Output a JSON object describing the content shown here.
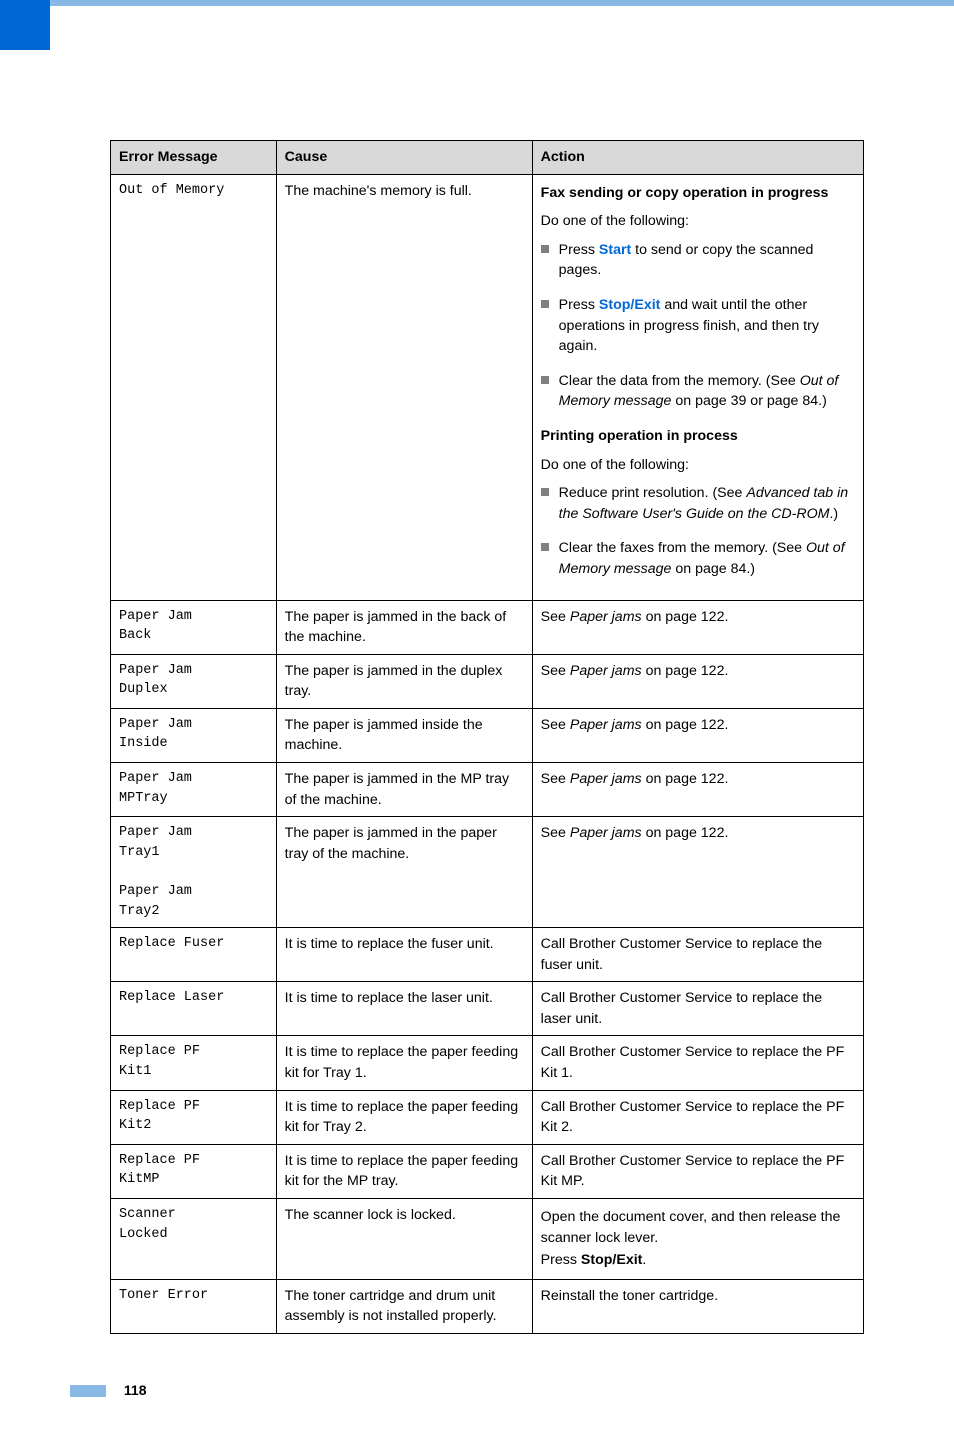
{
  "header": {
    "cols": [
      "Error Message",
      "Cause",
      "Action"
    ]
  },
  "rows": [
    {
      "msg": "Out of Memory",
      "cause": "The machine's memory is full.",
      "action_html": "out_of_memory"
    },
    {
      "msg": "Paper Jam\nBack",
      "cause": "The paper is jammed in the back of the machine.",
      "action": {
        "pre": "See ",
        "ital": "Paper jams",
        "post": " on page 122."
      }
    },
    {
      "msg": "Paper Jam\nDuplex",
      "cause": "The paper is jammed in the duplex tray.",
      "action": {
        "pre": "See ",
        "ital": "Paper jams",
        "post": " on page 122."
      }
    },
    {
      "msg": "Paper Jam\nInside",
      "cause": "The paper is jammed inside the machine.",
      "action": {
        "pre": "See ",
        "ital": "Paper jams",
        "post": " on page 122."
      }
    },
    {
      "msg": "Paper Jam\nMPTray",
      "cause": "The paper is jammed in the MP tray of the machine.",
      "action": {
        "pre": "See ",
        "ital": "Paper jams",
        "post": " on page 122."
      }
    },
    {
      "msg": "Paper Jam\nTray1\n\nPaper Jam\nTray2",
      "cause": "The paper is jammed in the paper tray of the machine.",
      "action": {
        "pre": "See ",
        "ital": "Paper jams",
        "post": " on page 122."
      }
    },
    {
      "msg": "Replace Fuser",
      "cause": "It is time to replace the fuser unit.",
      "action": {
        "pre": "Call Brother Customer Service to replace the fuser unit.",
        "ital": "",
        "post": ""
      }
    },
    {
      "msg": "Replace Laser",
      "cause": "It is time to replace the laser unit.",
      "action": {
        "pre": "Call Brother Customer Service to replace the laser unit.",
        "ital": "",
        "post": ""
      }
    },
    {
      "msg": "Replace PF\nKit1",
      "cause": "It is time to replace the paper feeding kit for Tray 1.",
      "action": {
        "pre": "Call Brother Customer Service to replace the PF Kit 1.",
        "ital": "",
        "post": ""
      }
    },
    {
      "msg": "Replace PF\nKit2",
      "cause": "It is time to replace the paper feeding kit for Tray 2.",
      "action": {
        "pre": "Call Brother Customer Service to replace the PF Kit 2.",
        "ital": "",
        "post": ""
      }
    },
    {
      "msg": "Replace PF\nKitMP",
      "cause": "It is time to replace the paper feeding kit for the MP tray.",
      "action": {
        "pre": "Call Brother Customer Service to replace the PF Kit MP.",
        "ital": "",
        "post": ""
      }
    },
    {
      "msg": "Scanner\nLocked",
      "cause": "The scanner lock is locked.",
      "action_html": "scanner_locked"
    },
    {
      "msg": "Toner Error",
      "cause": "The toner cartridge and drum unit assembly is not installed properly.",
      "action": {
        "pre": "Reinstall the toner cartridge.",
        "ital": "",
        "post": ""
      }
    }
  ],
  "out_of_memory": {
    "line1_bold": "Fax sending or copy operation in progress",
    "line2": "Do one of the following:",
    "b1_pre": "Press ",
    "b1_blue": "Start",
    "b1_post": " to send or copy the scanned pages.",
    "b2_pre": "Press ",
    "b2_blue": "Stop/Exit",
    "b2_post": " and wait until the other operations in progress finish, and then try again.",
    "b3_pre": "Clear the data from the memory. (See ",
    "b3_ital": "Out of Memory message",
    "b3_post": " on page 39 or page 84.)",
    "line3_bold": "Printing operation in process",
    "line4": "Do one of the following:",
    "b4_pre": "Reduce print resolution. (See ",
    "b4_ital": "Advanced tab in the Software User's Guide on the CD-ROM",
    "b4_post": ".)",
    "b5_pre": "Clear the faxes from the memory. (See ",
    "b5_ital": "Out of Memory message",
    "b5_post": " on page 84.)"
  },
  "scanner_locked": {
    "line1": "Open the document cover, and then release the scanner lock lever.",
    "line2_pre": "Press ",
    "line2_bold": "Stop/Exit",
    "line2_post": "."
  },
  "colwidths": {
    "c1": "22%",
    "c2": "34%",
    "c3": "44%"
  },
  "colors": {
    "header_bg": "#d9d9d9",
    "accent": "#0068d6",
    "band": "#8ab8e6",
    "bullet": "#808080"
  },
  "page_number": "118"
}
